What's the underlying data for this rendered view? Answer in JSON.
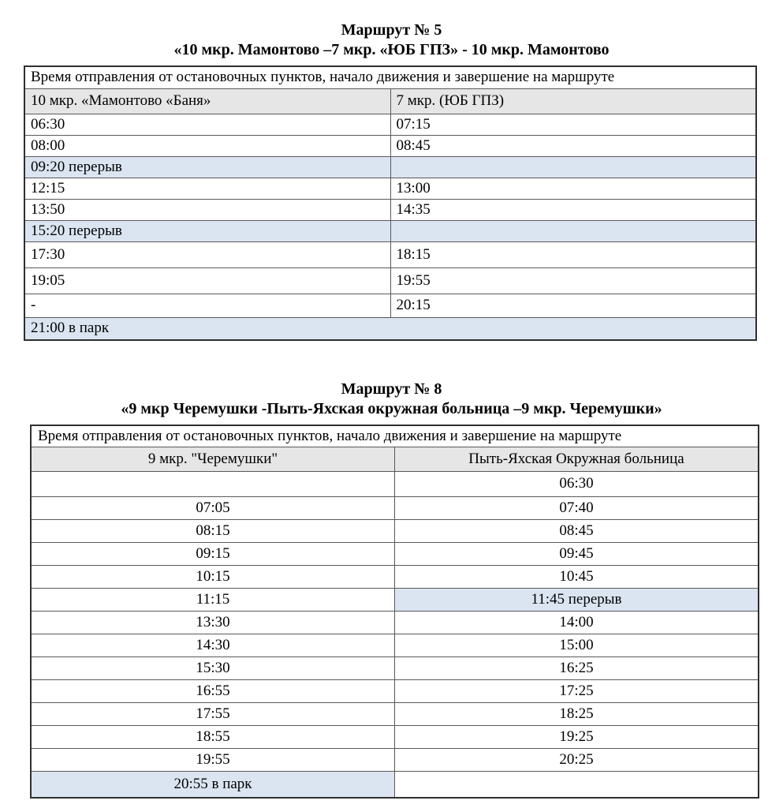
{
  "colors": {
    "column_header_gray": "#e6e6e6",
    "break_row_blue": "#dbe5f1",
    "table_border": "#595959"
  },
  "route5": {
    "title": "Маршрут № 5",
    "subtitle": "«10 мкр. Мамонтово –7 мкр. «ЮБ ГПЗ» - 10 мкр. Мамонтово",
    "table_header": "Время отправления от остановочных пунктов, начало движения и завершение на маршруте",
    "columns": [
      "10 мкр. «Мамонтово «Баня»",
      "7 мкр. (ЮБ ГПЗ)"
    ],
    "rows": [
      {
        "l": "06:30",
        "r": "07:15",
        "type": "normal"
      },
      {
        "l": "08:00",
        "r": "08:45",
        "type": "normal"
      },
      {
        "l": "09:20 перерыв",
        "r": "",
        "type": "break"
      },
      {
        "l": "12:15",
        "r": "13:00",
        "type": "normal"
      },
      {
        "l": "13:50",
        "r": "14:35",
        "type": "normal"
      },
      {
        "l": "15:20 перерыв",
        "r": "",
        "type": "break"
      },
      {
        "l": "17:30",
        "r": "18:15",
        "type": "normal"
      },
      {
        "l": "19:05",
        "r": "19:55",
        "type": "normal"
      },
      {
        "l": "-",
        "r": "20:15",
        "type": "normal"
      },
      {
        "l": "21:00 в парк",
        "type": "break-merged"
      }
    ]
  },
  "route8": {
    "title": "Маршрут № 8",
    "subtitle": "«9 мкр Черемушки -Пыть-Яхская окружная больница –9 мкр. Черемушки»",
    "table_header": "Время отправления от остановочных пунктов, начало движения и завершение на маршруте",
    "columns": [
      "9 мкр. \"Черемушки\"",
      "Пыть-Яхская Окружная больница"
    ],
    "rows": [
      {
        "l": "",
        "r": "06:30",
        "type": "normal"
      },
      {
        "l": "07:05",
        "r": "07:40",
        "type": "normal"
      },
      {
        "l": "08:15",
        "r": "08:45",
        "type": "normal"
      },
      {
        "l": "09:15",
        "r": "09:45",
        "type": "normal"
      },
      {
        "l": "10:15",
        "r": "10:45",
        "type": "normal"
      },
      {
        "l": "11:15",
        "r": "11:45 перерыв",
        "type": "break-right"
      },
      {
        "l": "13:30",
        "r": "14:00",
        "type": "normal"
      },
      {
        "l": "14:30",
        "r": "15:00",
        "type": "normal"
      },
      {
        "l": "15:30",
        "r": "16:25",
        "type": "normal"
      },
      {
        "l": "16:55",
        "r": "17:25",
        "type": "normal"
      },
      {
        "l": "17:55",
        "r": "18:25",
        "type": "normal"
      },
      {
        "l": "18:55",
        "r": "19:25",
        "type": "normal"
      },
      {
        "l": "19:55",
        "r": "20:25",
        "type": "normal"
      },
      {
        "l": "20:55 в парк",
        "r": "",
        "type": "break-left"
      }
    ]
  }
}
